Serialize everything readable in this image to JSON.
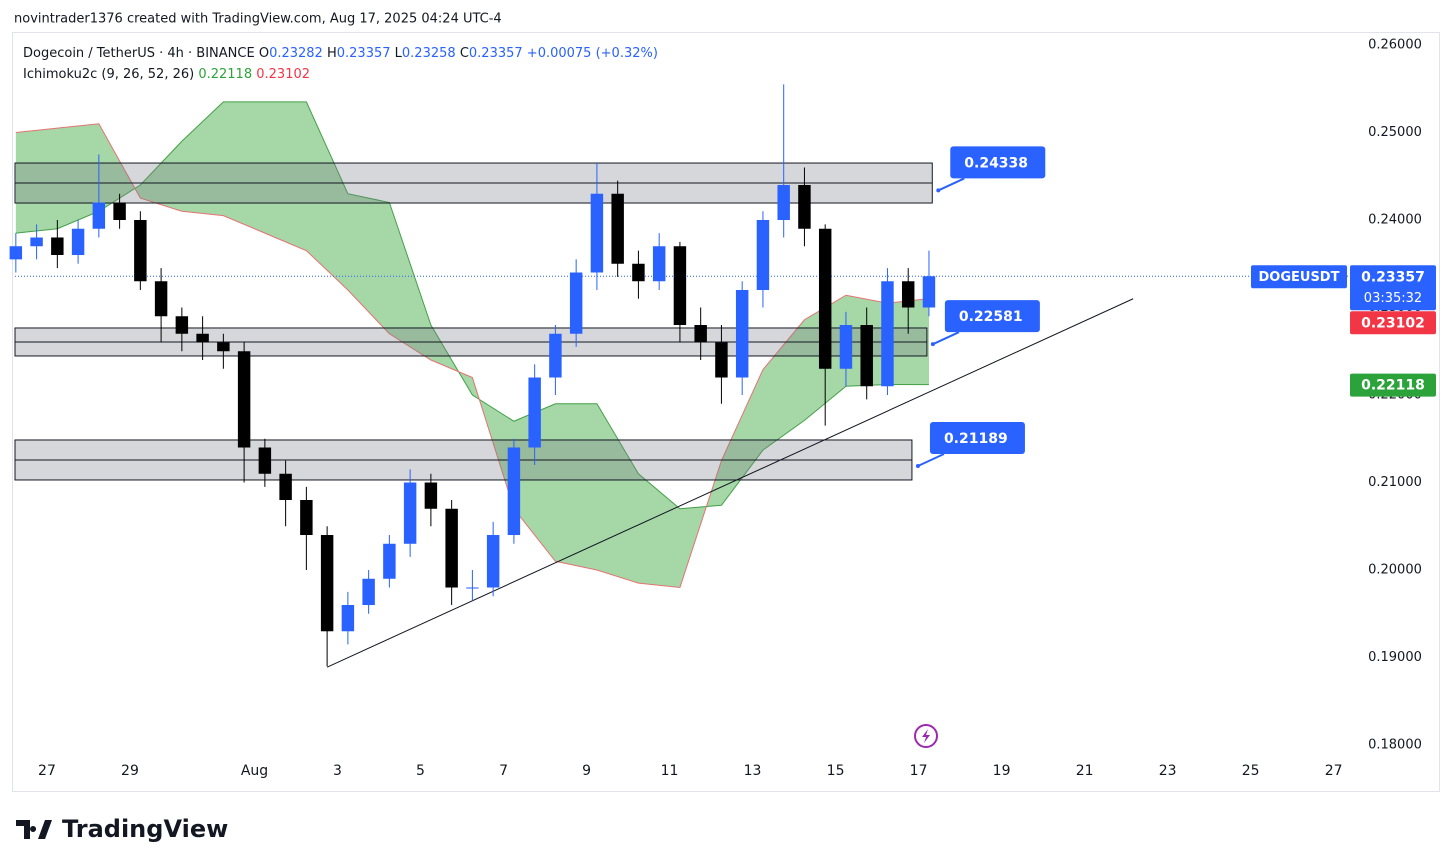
{
  "header": "novintrader1376 created with TradingView.com, Aug 17, 2025 04:24 UTC-4",
  "footer_logo": "TradingView",
  "chart_data": {
    "type": "candlestick",
    "legend": {
      "symbol": "Dogecoin / TetherUS · 4h · BINANCE",
      "ohlc": [
        {
          "label": "O",
          "value": "0.23282"
        },
        {
          "label": "H",
          "value": "0.23357"
        },
        {
          "label": "L",
          "value": "0.23258"
        },
        {
          "label": "C",
          "value": "0.23357"
        }
      ],
      "change": "+0.00075 (+0.32%)",
      "indicator": "Ichimoku2c (9, 26, 52, 26)",
      "indicator_values": [
        "0.22118",
        "0.23102"
      ]
    },
    "x": [
      -0.75,
      -0.25,
      0.25,
      0.75,
      1.25,
      1.75,
      2.25,
      2.75,
      3.25,
      3.75,
      4.25,
      4.75,
      5.25,
      5.75,
      6.25,
      6.75,
      7.25,
      7.75,
      8.25,
      8.75,
      9.25,
      9.75,
      10.25,
      10.75,
      11.25,
      11.75,
      12.25,
      12.75,
      13.25,
      13.75,
      14.25,
      14.75,
      15.25,
      15.75,
      16.25,
      16.75,
      17.25,
      17.75,
      18.25,
      18.75,
      19.25,
      19.75,
      20.25,
      20.75,
      21.25
    ],
    "open": [
      0.2355,
      0.237,
      0.238,
      0.236,
      0.239,
      0.242,
      0.24,
      0.233,
      0.229,
      0.227,
      0.226,
      0.225,
      0.214,
      0.211,
      0.208,
      0.204,
      0.193,
      0.196,
      0.199,
      0.203,
      0.21,
      0.207,
      0.198,
      0.198,
      0.204,
      0.214,
      0.222,
      0.227,
      0.234,
      0.243,
      0.235,
      0.233,
      0.237,
      0.228,
      0.226,
      0.222,
      0.232,
      0.24,
      0.244,
      0.239,
      0.223,
      0.228,
      0.221,
      0.233,
      0.23
    ],
    "high": [
      0.2385,
      0.2395,
      0.24,
      0.24,
      0.2475,
      0.243,
      0.241,
      0.2345,
      0.23,
      0.229,
      0.227,
      0.226,
      0.215,
      0.2125,
      0.2095,
      0.205,
      0.1975,
      0.2,
      0.204,
      0.2115,
      0.211,
      0.208,
      0.2,
      0.2055,
      0.215,
      0.2235,
      0.228,
      0.2355,
      0.2465,
      0.2445,
      0.2365,
      0.2385,
      0.2375,
      0.23,
      0.228,
      0.233,
      0.241,
      0.2555,
      0.246,
      0.2395,
      0.2295,
      0.23,
      0.2345,
      0.2345,
      0.2365
    ],
    "low": [
      0.234,
      0.2355,
      0.2345,
      0.235,
      0.238,
      0.239,
      0.232,
      0.226,
      0.225,
      0.224,
      0.223,
      0.21,
      0.2095,
      0.205,
      0.2,
      0.189,
      0.1915,
      0.195,
      0.198,
      0.2015,
      0.205,
      0.196,
      0.1965,
      0.197,
      0.203,
      0.212,
      0.22,
      0.2255,
      0.232,
      0.2335,
      0.231,
      0.232,
      0.226,
      0.224,
      0.219,
      0.22,
      0.23,
      0.238,
      0.237,
      0.2165,
      0.221,
      0.2195,
      0.22,
      0.227,
      0.229
    ],
    "close": [
      0.237,
      0.238,
      0.236,
      0.239,
      0.242,
      0.24,
      0.233,
      0.229,
      0.227,
      0.226,
      0.225,
      0.214,
      0.211,
      0.208,
      0.204,
      0.193,
      0.196,
      0.199,
      0.203,
      0.21,
      0.207,
      0.198,
      0.198,
      0.204,
      0.214,
      0.222,
      0.227,
      0.234,
      0.243,
      0.235,
      0.233,
      0.237,
      0.228,
      0.226,
      0.222,
      0.232,
      0.24,
      0.244,
      0.239,
      0.223,
      0.228,
      0.221,
      0.233,
      0.23,
      0.23357
    ],
    "up_color": "#2962ff",
    "down_color": "#000000",
    "cloud": {
      "x": [
        -0.75,
        0.25,
        1.25,
        2.25,
        3.25,
        4.25,
        5.25,
        6.25,
        7.25,
        8.25,
        9.25,
        10.25,
        11.25,
        12.25,
        13.25,
        14.25,
        15.25,
        16.25,
        17.25,
        18.25,
        19.25,
        20.25,
        21.25
      ],
      "span_a": {
        "color": "#43a047",
        "values": [
          0.2385,
          0.239,
          0.241,
          0.244,
          0.249,
          0.2535,
          0.2535,
          0.2535,
          0.243,
          0.242,
          0.228,
          0.22,
          0.217,
          0.219,
          0.219,
          0.211,
          0.207,
          0.2074,
          0.2137,
          0.2171,
          0.221,
          0.2212,
          0.22118
        ]
      },
      "span_b": {
        "color": "#e57373",
        "values": [
          0.25,
          0.2505,
          0.251,
          0.2425,
          0.241,
          0.2405,
          0.2385,
          0.2365,
          0.232,
          0.227,
          0.224,
          0.222,
          0.207,
          0.201,
          0.2,
          0.1985,
          0.198,
          0.2125,
          0.2229,
          0.2286,
          0.2314,
          0.2305,
          0.23102
        ]
      },
      "fill": "rgba(76,175,80,0.5)"
    },
    "zones": [
      {
        "low": 0.24194,
        "high": 0.24651,
        "x": [
          -0.77,
          21.33
        ]
      },
      {
        "low": 0.22446,
        "high": 0.22766,
        "x": [
          -0.77,
          21.2
        ]
      },
      {
        "low": 0.21029,
        "high": 0.21486,
        "x": [
          -0.77,
          20.84
        ]
      }
    ],
    "callouts": [
      0.24338,
      0.22581,
      0.21189
    ],
    "trendline": {
      "x": [
        6.75,
        26.17
      ],
      "y": [
        0.1889,
        0.231
      ]
    },
    "price_line": {
      "symbol": "DOGEUSDT",
      "value": 0.23357,
      "countdown": "03:35:32"
    },
    "indicator_marks": [
      {
        "value": 0.23102,
        "color": "#f23645"
      },
      {
        "value": 0.22118,
        "color": "#2ca33a"
      }
    ],
    "xlim": [
      -0.77,
      31.37
    ],
    "ylim": [
      0.17486,
      0.26137
    ],
    "xticks": [
      {
        "value": 0,
        "label": "27"
      },
      {
        "value": 2,
        "label": "29"
      },
      {
        "value": 5,
        "label": "Aug"
      },
      {
        "value": 7,
        "label": "3"
      },
      {
        "value": 9,
        "label": "5"
      },
      {
        "value": 11,
        "label": "7"
      },
      {
        "value": 13,
        "label": "9"
      },
      {
        "value": 15,
        "label": "11"
      },
      {
        "value": 17,
        "label": "13"
      },
      {
        "value": 19,
        "label": "15"
      },
      {
        "value": 21,
        "label": "17"
      },
      {
        "value": 23,
        "label": "19"
      },
      {
        "value": 25,
        "label": "21"
      },
      {
        "value": 27,
        "label": "23"
      },
      {
        "value": 29,
        "label": "25"
      },
      {
        "value": 31,
        "label": "27"
      }
    ],
    "yticks": [
      {
        "value": 0.18,
        "label": "0.18000"
      },
      {
        "value": 0.19,
        "label": "0.19000"
      },
      {
        "value": 0.2,
        "label": "0.20000"
      },
      {
        "value": 0.21,
        "label": "0.21000"
      },
      {
        "value": 0.22,
        "label": "0.22000"
      },
      {
        "value": 0.23,
        "label": "0.23000"
      },
      {
        "value": 0.24,
        "label": "0.24000"
      },
      {
        "value": 0.25,
        "label": "0.25000"
      },
      {
        "value": 0.26,
        "label": "0.26000"
      }
    ]
  }
}
